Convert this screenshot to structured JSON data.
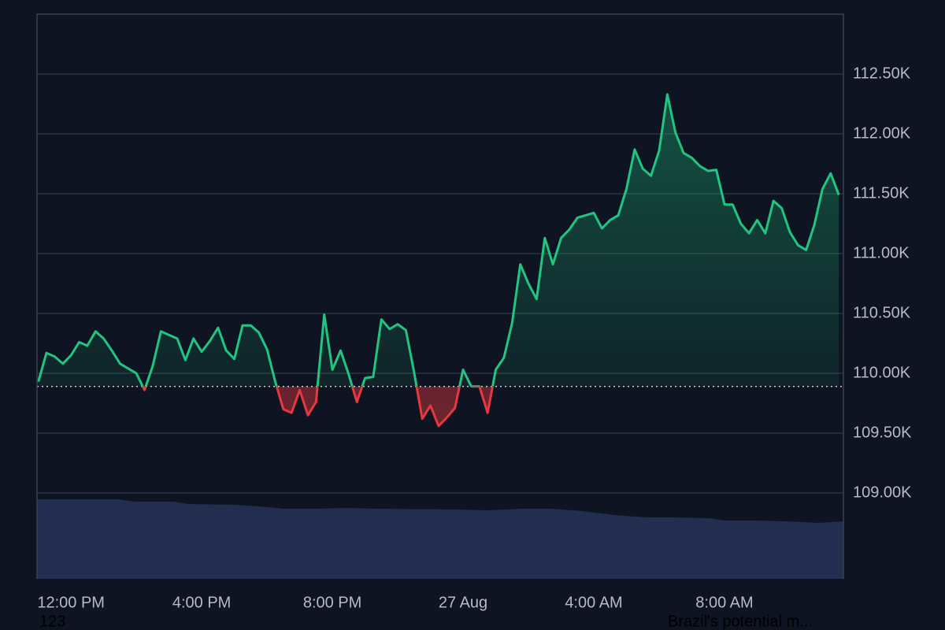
{
  "chart_data": {
    "type": "line",
    "x": [
      11,
      11.25,
      11.5,
      11.75,
      12,
      12.25,
      12.5,
      12.75,
      13,
      13.25,
      13.5,
      13.75,
      14,
      14.25,
      14.5,
      14.75,
      15,
      15.25,
      15.5,
      15.75,
      16,
      16.25,
      16.5,
      16.75,
      17,
      17.25,
      17.5,
      17.75,
      18,
      18.25,
      18.5,
      18.75,
      19,
      19.25,
      19.5,
      19.75,
      20,
      20.25,
      20.5,
      20.75,
      21,
      21.25,
      21.5,
      21.75,
      22,
      22.25,
      22.5,
      22.75,
      23,
      23.25,
      23.5,
      23.75,
      24,
      24.25,
      24.5,
      24.75,
      25,
      25.25,
      25.5,
      25.75,
      26,
      26.25,
      26.5,
      26.75,
      27,
      27.25,
      27.5,
      27.75,
      28,
      28.25,
      28.5,
      28.75,
      29,
      29.25,
      29.5,
      29.75,
      30,
      30.25,
      30.5,
      30.75,
      31,
      31.25,
      31.5,
      31.75,
      32,
      32.25,
      32.5,
      32.75,
      33,
      33.25,
      33.5,
      33.75,
      34,
      34.25,
      34.5,
      34.75,
      35,
      35.25,
      35.5
    ],
    "values": [
      109930,
      110170,
      110140,
      110080,
      110150,
      110260,
      110230,
      110350,
      110290,
      110190,
      110080,
      110040,
      110000,
      109860,
      110060,
      110350,
      110320,
      110290,
      110110,
      110290,
      110180,
      110270,
      110380,
      110190,
      110120,
      110400,
      110400,
      110340,
      110200,
      109930,
      109700,
      109670,
      109860,
      109650,
      109760,
      110490,
      110030,
      110190,
      109990,
      109760,
      109960,
      109970,
      110450,
      110370,
      110410,
      110360,
      110010,
      109620,
      109730,
      109560,
      109630,
      109710,
      110030,
      109890,
      109890,
      109670,
      110030,
      110130,
      110420,
      110910,
      110750,
      110620,
      111130,
      110910,
      111130,
      111200,
      111300,
      111320,
      111340,
      111210,
      111280,
      111320,
      111540,
      111870,
      111710,
      111650,
      111860,
      112330,
      112010,
      111840,
      111800,
      111730,
      111690,
      111700,
      111410,
      111410,
      111250,
      111170,
      111280,
      111170,
      111440,
      111380,
      111180,
      111070,
      111030,
      111240,
      111540,
      111670,
      111490
    ],
    "color": "#1fc580",
    "down_color": "#e5383f",
    "baseline": 109890,
    "xlim": [
      10.96,
      35.64
    ],
    "ylim": [
      108283,
      113000
    ],
    "xticks": [
      {
        "value": 12,
        "label": "12:00 PM"
      },
      {
        "value": 16,
        "label": "4:00 PM"
      },
      {
        "value": 20,
        "label": "8:00 PM"
      },
      {
        "value": 24,
        "label": "27 Aug"
      },
      {
        "value": 28,
        "label": "4:00 AM"
      },
      {
        "value": 32,
        "label": "8:00 AM"
      }
    ],
    "yticks": [
      {
        "value": 109000,
        "label": "109.00K"
      },
      {
        "value": 109500,
        "label": "109.50K"
      },
      {
        "value": 110000,
        "label": "110.00K"
      },
      {
        "value": 110500,
        "label": "110.50K"
      },
      {
        "value": 111000,
        "label": "111.00K"
      },
      {
        "value": 111500,
        "label": "111.50K"
      },
      {
        "value": 112000,
        "label": "112.00K"
      },
      {
        "value": 112500,
        "label": "112.50K"
      }
    ],
    "grid": true
  },
  "footer": [
    "123",
    "Brazil's potential m..."
  ]
}
